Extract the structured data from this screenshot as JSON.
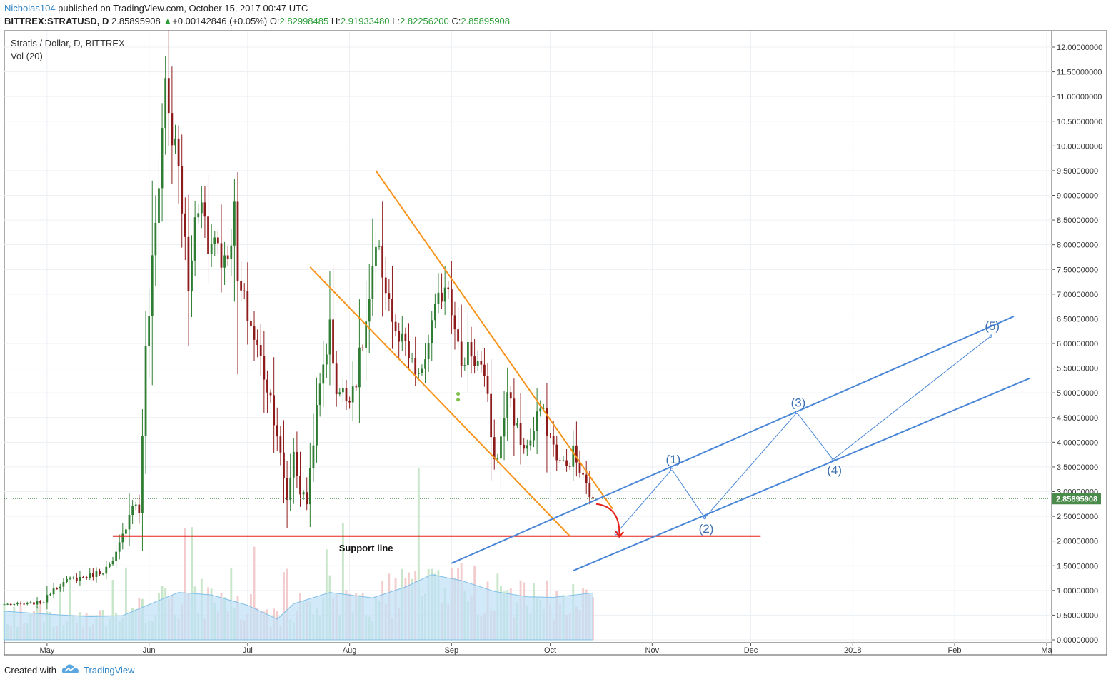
{
  "header": {
    "author": "Nicholas104",
    "published": " published on TradingView.com, October 15, 2017 00:47 UTC",
    "symbol": "BITTREX:STRATUSD, D",
    "price": "2.85895908",
    "change": "+0.00142846 (+0.05%)",
    "ohlc_o_label": "O:",
    "ohlc_o": "2.82998485",
    "ohlc_h_label": "H:",
    "ohlc_h": "2.91933480",
    "ohlc_l_label": "L:",
    "ohlc_l": "2.82256200",
    "ohlc_c_label": "C:",
    "ohlc_c": "2.85895908"
  },
  "legend": {
    "title": "Stratis / Dollar, D, BITTREX",
    "volume": "Vol (20)"
  },
  "footer": {
    "created_with": "Created with",
    "brand": "TradingView"
  },
  "colors": {
    "up": "#2e7d32",
    "down": "#8e1b1b",
    "wedge": "#f7931a",
    "channel": "#4a86d8",
    "support": "#e5201c",
    "vol_ma_fill": "#bfe0f7",
    "price_tag": "#4a8a4a",
    "header_up": "#2a9d37",
    "author": "#2e84c6"
  },
  "chart_data": {
    "type": "candlestick",
    "symbol": "STRATUSD",
    "exchange": "BITTREX",
    "interval": "D",
    "y_ticks": [
      "0.00000000",
      "0.50000000",
      "1.00000000",
      "1.50000000",
      "2.00000000",
      "2.50000000",
      "3.00000000",
      "3.50000000",
      "4.00000000",
      "4.50000000",
      "5.00000000",
      "5.50000000",
      "6.00000000",
      "6.50000000",
      "7.00000000",
      "7.50000000",
      "8.00000000",
      "8.50000000",
      "9.00000000",
      "9.50000000",
      "10.00000000",
      "10.50000000",
      "11.00000000",
      "11.50000000",
      "12.00000000"
    ],
    "ylim": [
      0,
      12.1
    ],
    "x_ticks": [
      {
        "label": "May",
        "date": "2017-05-01"
      },
      {
        "label": "Jun",
        "date": "2017-06-01"
      },
      {
        "label": "Jul",
        "date": "2017-07-01"
      },
      {
        "label": "Aug",
        "date": "2017-08-01"
      },
      {
        "label": "Sep",
        "date": "2017-09-01"
      },
      {
        "label": "Oct",
        "date": "2017-10-01"
      },
      {
        "label": "Nov",
        "date": "2017-11-01"
      },
      {
        "label": "Dec",
        "date": "2017-12-01"
      },
      {
        "label": "2018",
        "date": "2018-01-01"
      },
      {
        "label": "Feb",
        "date": "2018-02-01"
      },
      {
        "label": "Ma",
        "date": "2018-03-01"
      }
    ],
    "xlim": [
      "2017-04-18",
      "2018-03-01"
    ],
    "last_price": "2.85895908",
    "price_points": [
      [
        "2017-04-18",
        0.72
      ],
      [
        "2017-04-25",
        0.72
      ],
      [
        "2017-04-30",
        0.78
      ],
      [
        "2017-05-03",
        1.05
      ],
      [
        "2017-05-08",
        1.22
      ],
      [
        "2017-05-14",
        1.3
      ],
      [
        "2017-05-18",
        1.4
      ],
      [
        "2017-05-21",
        1.55
      ],
      [
        "2017-05-24",
        2.1
      ],
      [
        "2017-05-27",
        2.8
      ],
      [
        "2017-05-29",
        2.6
      ],
      [
        "2017-05-31",
        5.8
      ],
      [
        "2017-06-03",
        8.4
      ],
      [
        "2017-06-05",
        10.4
      ],
      [
        "2017-06-06",
        11.3
      ],
      [
        "2017-06-08",
        10.2
      ],
      [
        "2017-06-10",
        9.5
      ],
      [
        "2017-06-12",
        8.0
      ],
      [
        "2017-06-13",
        7.0
      ],
      [
        "2017-06-15",
        8.5
      ],
      [
        "2017-06-17",
        9.2
      ],
      [
        "2017-06-19",
        7.8
      ],
      [
        "2017-06-21",
        8.3
      ],
      [
        "2017-06-24",
        7.6
      ],
      [
        "2017-06-27",
        8.6
      ],
      [
        "2017-06-28",
        7.2
      ],
      [
        "2017-07-01",
        6.6
      ],
      [
        "2017-07-04",
        5.9
      ],
      [
        "2017-07-06",
        5.4
      ],
      [
        "2017-07-08",
        4.9
      ],
      [
        "2017-07-10",
        4.2
      ],
      [
        "2017-07-12",
        3.2
      ],
      [
        "2017-07-13",
        2.85
      ],
      [
        "2017-07-15",
        3.8
      ],
      [
        "2017-07-17",
        3.0
      ],
      [
        "2017-07-19",
        2.8
      ],
      [
        "2017-07-21",
        4.1
      ],
      [
        "2017-07-24",
        5.6
      ],
      [
        "2017-07-26",
        6.3
      ],
      [
        "2017-07-28",
        5.1
      ],
      [
        "2017-07-31",
        4.9
      ],
      [
        "2017-08-03",
        5.3
      ],
      [
        "2017-08-06",
        6.4
      ],
      [
        "2017-08-08",
        7.3
      ],
      [
        "2017-08-09",
        7.8
      ],
      [
        "2017-08-11",
        7.5
      ],
      [
        "2017-08-13",
        6.9
      ],
      [
        "2017-08-15",
        6.1
      ],
      [
        "2017-08-18",
        5.9
      ],
      [
        "2017-08-20",
        5.5
      ],
      [
        "2017-08-23",
        5.3
      ],
      [
        "2017-08-25",
        6.1
      ],
      [
        "2017-08-28",
        6.8
      ],
      [
        "2017-08-30",
        7.3
      ],
      [
        "2017-08-31",
        7.2
      ],
      [
        "2017-09-02",
        6.5
      ],
      [
        "2017-09-04",
        5.4
      ],
      [
        "2017-09-06",
        6.0
      ],
      [
        "2017-09-08",
        5.7
      ],
      [
        "2017-09-10",
        5.5
      ],
      [
        "2017-09-12",
        4.8
      ],
      [
        "2017-09-14",
        3.6
      ],
      [
        "2017-09-16",
        4.0
      ],
      [
        "2017-09-18",
        5.1
      ],
      [
        "2017-09-20",
        4.5
      ],
      [
        "2017-09-22",
        4.0
      ],
      [
        "2017-09-24",
        3.9
      ],
      [
        "2017-09-26",
        4.2
      ],
      [
        "2017-09-28",
        4.7
      ],
      [
        "2017-09-30",
        4.3
      ],
      [
        "2017-10-02",
        3.9
      ],
      [
        "2017-10-04",
        3.6
      ],
      [
        "2017-10-06",
        3.5
      ],
      [
        "2017-10-08",
        3.8
      ],
      [
        "2017-10-10",
        3.4
      ],
      [
        "2017-10-12",
        3.1
      ],
      [
        "2017-10-14",
        2.86
      ]
    ],
    "volume_ma_points": [
      [
        "2017-04-18",
        0.58
      ],
      [
        "2017-05-01",
        0.52
      ],
      [
        "2017-05-14",
        0.47
      ],
      [
        "2017-05-24",
        0.49
      ],
      [
        "2017-06-03",
        0.77
      ],
      [
        "2017-06-10",
        0.96
      ],
      [
        "2017-06-20",
        0.91
      ],
      [
        "2017-07-01",
        0.7
      ],
      [
        "2017-07-10",
        0.42
      ],
      [
        "2017-07-15",
        0.73
      ],
      [
        "2017-07-26",
        0.96
      ],
      [
        "2017-08-08",
        0.85
      ],
      [
        "2017-08-18",
        1.07
      ],
      [
        "2017-08-26",
        1.32
      ],
      [
        "2017-09-04",
        1.2
      ],
      [
        "2017-09-14",
        0.98
      ],
      [
        "2017-09-24",
        0.87
      ],
      [
        "2017-10-02",
        0.86
      ],
      [
        "2017-10-14",
        0.95
      ]
    ],
    "annotations": {
      "support_line": {
        "label": "Support line",
        "value": 2.1,
        "from": "2017-05-21",
        "to": "2017-12-04"
      },
      "wedge_upper": [
        [
          "2017-08-09",
          9.5
        ],
        [
          "2017-10-20",
          2.65
        ]
      ],
      "wedge_lower": [
        [
          "2017-07-20",
          7.55
        ],
        [
          "2017-10-07",
          2.1
        ]
      ],
      "channel_upper": [
        [
          "2017-09-01",
          1.55
        ],
        [
          "2018-02-19",
          6.55
        ]
      ],
      "channel_lower": [
        [
          "2017-10-08",
          1.4
        ],
        [
          "2018-02-24",
          5.3
        ]
      ],
      "elliott_points": [
        [
          "2017-10-21",
          2.15
        ],
        [
          "2017-11-07",
          3.45
        ],
        [
          "2017-11-17",
          2.47
        ],
        [
          "2017-12-15",
          4.6
        ],
        [
          "2017-12-26",
          3.65
        ],
        [
          "2018-02-12",
          6.15
        ]
      ],
      "wave_labels": [
        {
          "label": "(1)",
          "date": "2017-11-07",
          "value": 3.47
        },
        {
          "label": "(2)",
          "date": "2017-11-17",
          "value": 2.47
        },
        {
          "label": "(3)",
          "date": "2017-12-15",
          "value": 4.62
        },
        {
          "label": "(4)",
          "date": "2017-12-26",
          "value": 3.66
        },
        {
          "label": "(5)",
          "date": "2018-02-12",
          "value": 6.17
        }
      ]
    }
  }
}
